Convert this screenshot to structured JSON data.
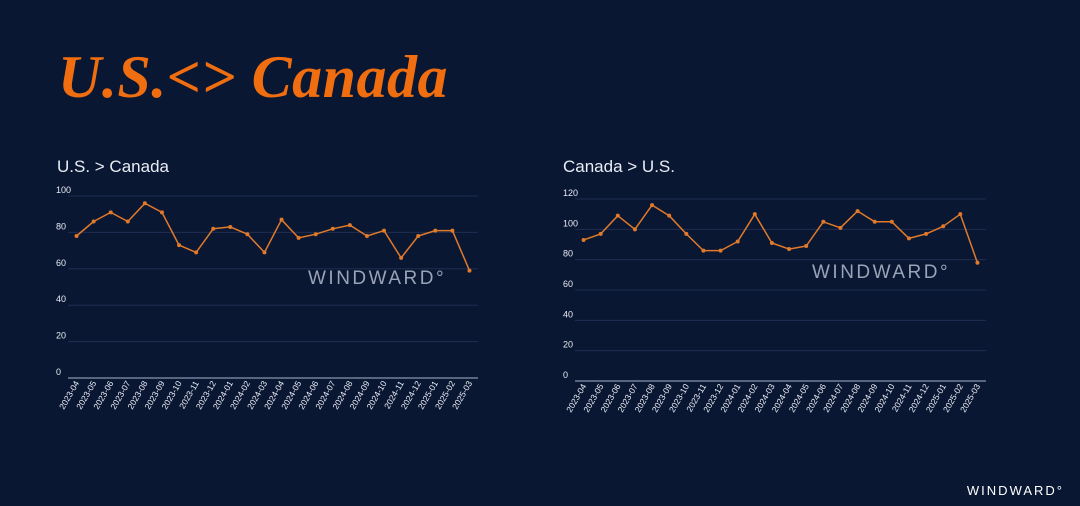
{
  "page": {
    "title": "U.S.<> Canada",
    "brand": "WINDWARD°"
  },
  "colors": {
    "background": "#0a1733",
    "accent": "#f06e10",
    "line": "#e07a2a",
    "text": "#e8ecf3",
    "watermark": "#9aa3b5"
  },
  "chart_data": [
    {
      "type": "line",
      "title": "U.S. > Canada",
      "watermark": "WINDWARD°",
      "x": [
        "2023-04",
        "2023-05",
        "2023-06",
        "2023-07",
        "2023-08",
        "2023-09",
        "2023-10",
        "2023-11",
        "2023-12",
        "2024-01",
        "2024-02",
        "2024-03",
        "2024-04",
        "2024-05",
        "2024-06",
        "2024-07",
        "2024-08",
        "2024-09",
        "2024-10",
        "2024-11",
        "2024-12",
        "2025-01",
        "2025-02",
        "2025-03"
      ],
      "series": [
        {
          "values": [
            78,
            86,
            91,
            86,
            96,
            91,
            73,
            69,
            82,
            83,
            79,
            69,
            87,
            77,
            79,
            82,
            84,
            78,
            81,
            66,
            78,
            81,
            81,
            59
          ]
        }
      ],
      "yticks": [
        0,
        20,
        40,
        60,
        80,
        100
      ],
      "ylim": [
        0,
        100
      ],
      "grid": true,
      "legend": "none"
    },
    {
      "type": "line",
      "title": "Canada > U.S.",
      "watermark": "WINDWARD°",
      "x": [
        "2023-04",
        "2023-05",
        "2023-06",
        "2023-07",
        "2023-08",
        "2023-09",
        "2023-10",
        "2023-11",
        "2023-12",
        "2024-01",
        "2024-02",
        "2024-03",
        "2024-04",
        "2024-05",
        "2024-06",
        "2024-07",
        "2024-08",
        "2024-09",
        "2024-10",
        "2024-11",
        "2024-12",
        "2025-01",
        "2025-02",
        "2025-03"
      ],
      "series": [
        {
          "values": [
            93,
            97,
            109,
            100,
            116,
            109,
            97,
            86,
            86,
            92,
            110,
            91,
            87,
            89,
            105,
            101,
            112,
            105,
            105,
            94,
            97,
            102,
            110,
            78
          ]
        }
      ],
      "yticks": [
        0,
        20,
        40,
        60,
        80,
        100,
        120
      ],
      "ylim": [
        0,
        120
      ],
      "grid": true,
      "legend": "none"
    }
  ]
}
